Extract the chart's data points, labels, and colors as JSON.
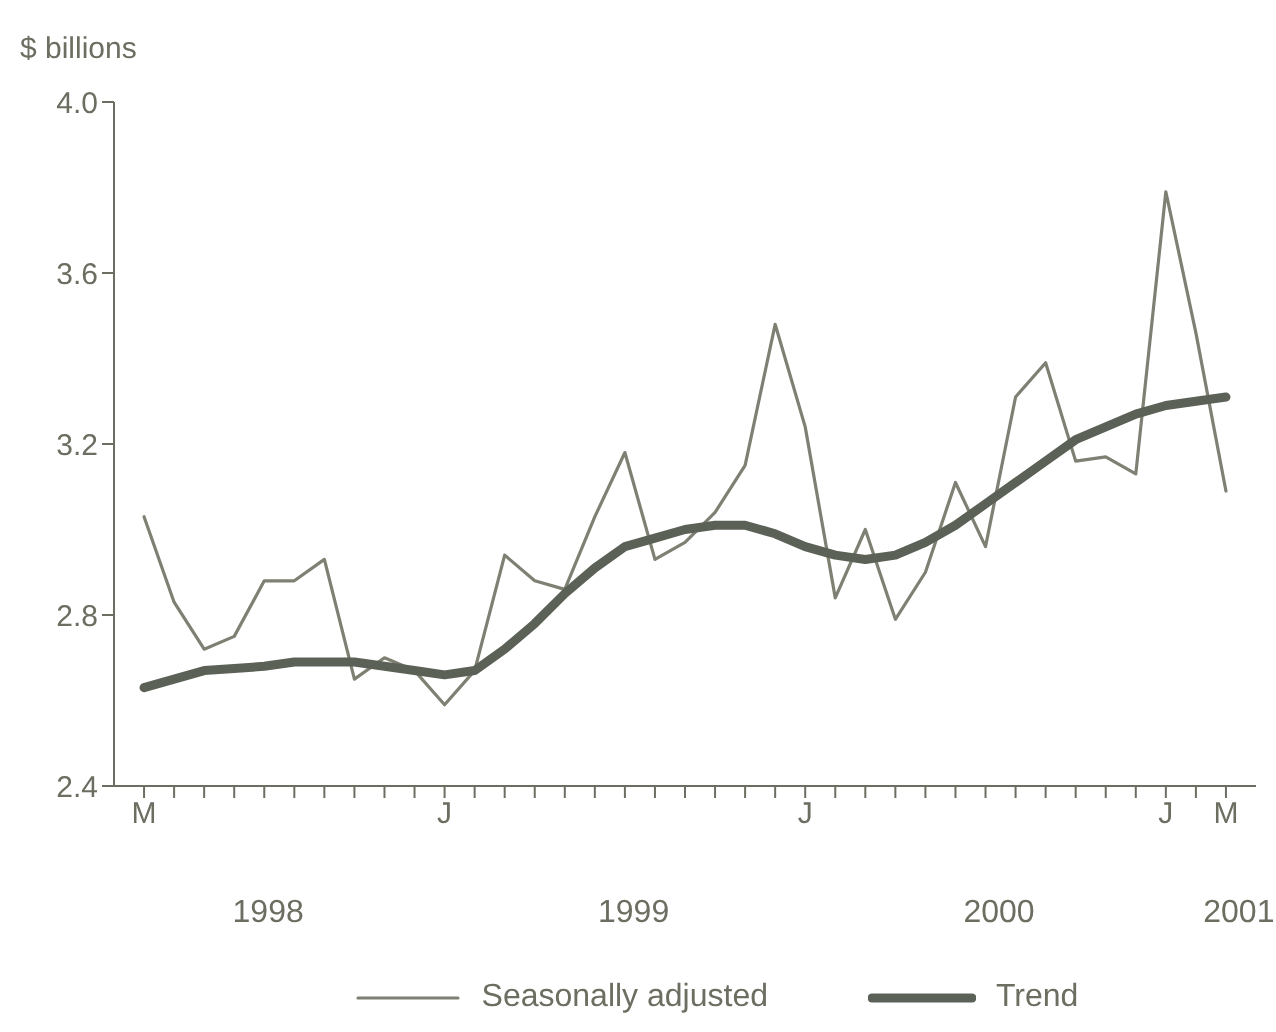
{
  "chart_data": {
    "type": "line",
    "ylabel": "$ billions",
    "categories": [
      "M",
      null,
      null,
      null,
      null,
      null,
      null,
      null,
      null,
      null,
      "J",
      null,
      null,
      null,
      null,
      null,
      null,
      null,
      null,
      null,
      null,
      null,
      "J",
      null,
      null,
      null,
      null,
      null,
      null,
      null,
      null,
      null,
      null,
      null,
      "J",
      null,
      "M"
    ],
    "series": [
      {
        "name": "Seasonally adjusted",
        "color": "#7d8072",
        "values": [
          3.03,
          2.83,
          2.72,
          2.75,
          2.88,
          2.88,
          2.93,
          2.65,
          2.7,
          2.67,
          2.59,
          2.67,
          2.94,
          2.88,
          2.86,
          3.03,
          3.18,
          2.93,
          2.97,
          3.04,
          3.15,
          3.48,
          3.24,
          2.84,
          3.0,
          2.79,
          2.9,
          3.11,
          2.96,
          3.31,
          3.39,
          3.16,
          3.17,
          3.13,
          3.79,
          3.46,
          3.09
        ]
      },
      {
        "name": "Trend",
        "color": "#5c6157",
        "values": [
          2.63,
          2.65,
          2.67,
          2.675,
          2.68,
          2.69,
          2.69,
          2.69,
          2.68,
          2.67,
          2.66,
          2.67,
          2.72,
          2.78,
          2.85,
          2.91,
          2.96,
          2.98,
          3.0,
          3.01,
          3.01,
          2.99,
          2.96,
          2.94,
          2.93,
          2.94,
          2.97,
          3.01,
          3.06,
          3.11,
          3.16,
          3.21,
          3.24,
          3.27,
          3.29,
          3.3,
          3.31
        ]
      }
    ],
    "ylim": [
      2.4,
      4.0
    ],
    "yticks": [
      2.4,
      2.8,
      3.2,
      3.6,
      {
        "value": 4,
        "label": "4.0"
      }
    ],
    "annotations": [
      "1998",
      "1999",
      "2000",
      "2001"
    ],
    "grid": false,
    "legend": "bottom",
    "marker": "none",
    "line_style": "solid"
  }
}
